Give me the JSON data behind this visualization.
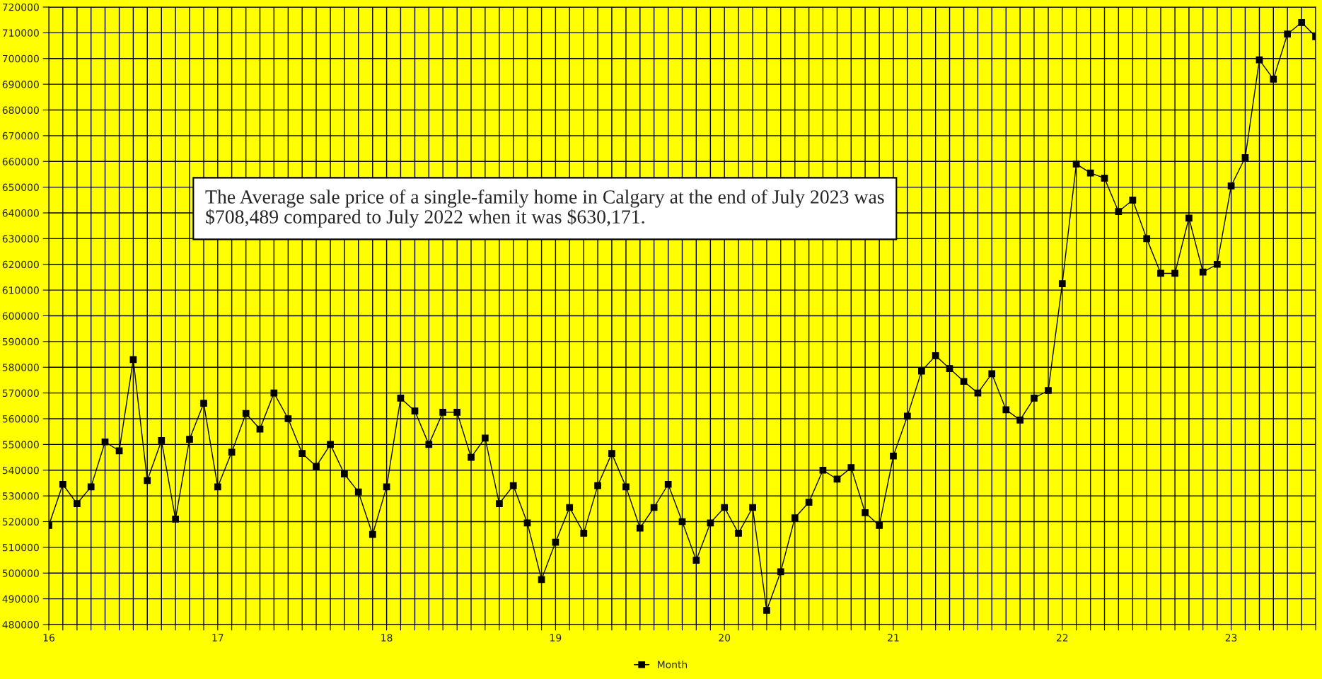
{
  "chart_data": {
    "type": "line",
    "x": [
      16,
      16.083,
      16.167,
      16.25,
      16.333,
      16.417,
      16.5,
      16.583,
      16.667,
      16.75,
      16.833,
      16.917,
      17,
      17.083,
      17.167,
      17.25,
      17.333,
      17.417,
      17.5,
      17.583,
      17.667,
      17.75,
      17.833,
      17.917,
      18,
      18.083,
      18.167,
      18.25,
      18.333,
      18.417,
      18.5,
      18.583,
      18.667,
      18.75,
      18.833,
      18.917,
      19,
      19.083,
      19.167,
      19.25,
      19.333,
      19.417,
      19.5,
      19.583,
      19.667,
      19.75,
      19.833,
      19.917,
      20,
      20.083,
      20.167,
      20.25,
      20.333,
      20.417,
      20.5,
      20.583,
      20.667,
      20.75,
      20.833,
      20.917,
      21,
      21.083,
      21.167,
      21.25,
      21.333,
      21.417,
      21.5,
      21.583,
      21.667,
      21.75,
      21.833,
      21.917,
      22,
      22.083,
      22.167,
      22.25,
      22.333,
      22.417,
      22.5,
      22.583,
      22.667,
      22.75,
      22.833,
      22.917,
      23,
      23.083,
      23.167,
      23.25,
      23.333,
      23.417,
      23.5
    ],
    "series": [
      {
        "name": "Month",
        "color": "#000000",
        "values": [
          518500,
          534500,
          527000,
          533500,
          551000,
          547500,
          583000,
          536000,
          551500,
          521000,
          552000,
          566000,
          533500,
          547000,
          562000,
          556000,
          570000,
          560000,
          546500,
          541500,
          550000,
          538500,
          531500,
          515000,
          533500,
          568000,
          563000,
          550000,
          562500,
          562500,
          545000,
          552500,
          527000,
          534000,
          519500,
          497500,
          512000,
          525500,
          515500,
          534000,
          546500,
          533500,
          517500,
          525500,
          534500,
          520000,
          505000,
          519500,
          525500,
          515500,
          525500,
          485500,
          500500,
          521500,
          527500,
          540000,
          536500,
          541000,
          523500,
          518500,
          545500,
          561000,
          578500,
          584500,
          579500,
          574500,
          570000,
          577500,
          563500,
          559500,
          568000,
          571000,
          612500,
          659000,
          655500,
          653500,
          640500,
          645000,
          630000,
          616500,
          616500,
          638000,
          617000,
          620000,
          650500,
          661500,
          699500,
          692000,
          709500,
          714000,
          708500
        ]
      }
    ],
    "xlim": [
      16,
      23.5
    ],
    "xticks": [
      16,
      {
        "value": 16.083,
        "label": null
      },
      {
        "value": 16.167,
        "label": null
      },
      {
        "value": 16.25,
        "label": null
      },
      {
        "value": 16.333,
        "label": null
      },
      {
        "value": 16.417,
        "label": null
      },
      {
        "value": 16.5,
        "label": null
      },
      {
        "value": 16.583,
        "label": null
      },
      {
        "value": 16.667,
        "label": null
      },
      {
        "value": 16.75,
        "label": null
      },
      {
        "value": 16.833,
        "label": null
      },
      {
        "value": 16.917,
        "label": null
      },
      17,
      {
        "value": 17.083,
        "label": null
      },
      {
        "value": 17.167,
        "label": null
      },
      {
        "value": 17.25,
        "label": null
      },
      {
        "value": 17.333,
        "label": null
      },
      {
        "value": 17.417,
        "label": null
      },
      {
        "value": 17.5,
        "label": null
      },
      {
        "value": 17.583,
        "label": null
      },
      {
        "value": 17.667,
        "label": null
      },
      {
        "value": 17.75,
        "label": null
      },
      {
        "value": 17.833,
        "label": null
      },
      {
        "value": 17.917,
        "label": null
      },
      18,
      {
        "value": 18.083,
        "label": null
      },
      {
        "value": 18.167,
        "label": null
      },
      {
        "value": 18.25,
        "label": null
      },
      {
        "value": 18.333,
        "label": null
      },
      {
        "value": 18.417,
        "label": null
      },
      {
        "value": 18.5,
        "label": null
      },
      {
        "value": 18.583,
        "label": null
      },
      {
        "value": 18.667,
        "label": null
      },
      {
        "value": 18.75,
        "label": null
      },
      {
        "value": 18.833,
        "label": null
      },
      {
        "value": 18.917,
        "label": null
      },
      19,
      {
        "value": 19.083,
        "label": null
      },
      {
        "value": 19.167,
        "label": null
      },
      {
        "value": 19.25,
        "label": null
      },
      {
        "value": 19.333,
        "label": null
      },
      {
        "value": 19.417,
        "label": null
      },
      {
        "value": 19.5,
        "label": null
      },
      {
        "value": 19.583,
        "label": null
      },
      {
        "value": 19.667,
        "label": null
      },
      {
        "value": 19.75,
        "label": null
      },
      {
        "value": 19.833,
        "label": null
      },
      {
        "value": 19.917,
        "label": null
      },
      20,
      {
        "value": 20.083,
        "label": null
      },
      {
        "value": 20.167,
        "label": null
      },
      {
        "value": 20.25,
        "label": null
      },
      {
        "value": 20.333,
        "label": null
      },
      {
        "value": 20.417,
        "label": null
      },
      {
        "value": 20.5,
        "label": null
      },
      {
        "value": 20.583,
        "label": null
      },
      {
        "value": 20.667,
        "label": null
      },
      {
        "value": 20.75,
        "label": null
      },
      {
        "value": 20.833,
        "label": null
      },
      {
        "value": 20.917,
        "label": null
      },
      21,
      {
        "value": 21.083,
        "label": null
      },
      {
        "value": 21.167,
        "label": null
      },
      {
        "value": 21.25,
        "label": null
      },
      {
        "value": 21.333,
        "label": null
      },
      {
        "value": 21.417,
        "label": null
      },
      {
        "value": 21.5,
        "label": null
      },
      {
        "value": 21.583,
        "label": null
      },
      {
        "value": 21.667,
        "label": null
      },
      {
        "value": 21.75,
        "label": null
      },
      {
        "value": 21.833,
        "label": null
      },
      {
        "value": 21.917,
        "label": null
      },
      22,
      {
        "value": 22.083,
        "label": null
      },
      {
        "value": 22.167,
        "label": null
      },
      {
        "value": 22.25,
        "label": null
      },
      {
        "value": 22.333,
        "label": null
      },
      {
        "value": 22.417,
        "label": null
      },
      {
        "value": 22.5,
        "label": null
      },
      {
        "value": 22.583,
        "label": null
      },
      {
        "value": 22.667,
        "label": null
      },
      {
        "value": 22.75,
        "label": null
      },
      {
        "value": 22.833,
        "label": null
      },
      {
        "value": 22.917,
        "label": null
      },
      23,
      {
        "value": 23.083,
        "label": null
      },
      {
        "value": 23.167,
        "label": null
      },
      {
        "value": 23.25,
        "label": null
      },
      {
        "value": 23.333,
        "label": null
      },
      {
        "value": 23.417,
        "label": null
      },
      {
        "value": 23.5,
        "label": null
      }
    ],
    "ylim": [
      480000,
      720000
    ],
    "yticks": [
      480000,
      490000,
      500000,
      510000,
      520000,
      530000,
      540000,
      550000,
      560000,
      570000,
      580000,
      590000,
      600000,
      610000,
      620000,
      630000,
      640000,
      650000,
      660000,
      670000,
      680000,
      690000,
      700000,
      710000,
      720000
    ],
    "grid": true,
    "legend": "bottom",
    "marker": "square",
    "line_style": "solid",
    "annotations": [
      "The Average sale price of a single-family home in Calgary at the end of July 2023 was\n$708,489 compared to July 2022 when it was $630,171."
    ]
  }
}
